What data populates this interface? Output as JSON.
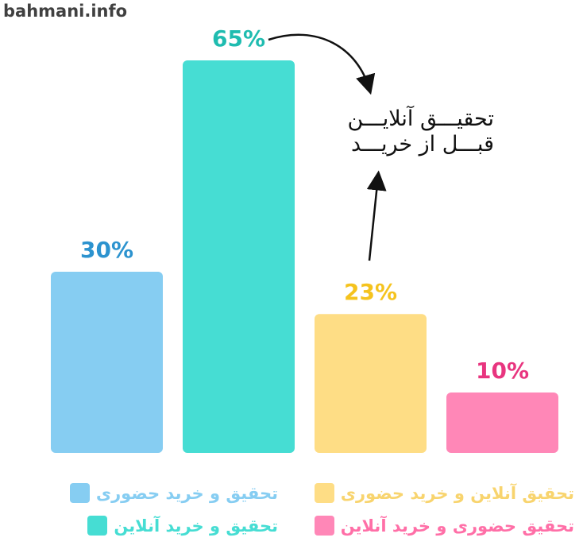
{
  "watermark": "bahmani.info",
  "chart_data": {
    "type": "bar",
    "categories": [
      "تحقیق و خرید حضوری",
      "تحقیق و خرید آنلاین",
      "تحقیق آنلاین و خرید حضوری",
      "تحقیق حضوری و خرید آنلاین"
    ],
    "values": [
      30,
      65,
      23,
      10
    ],
    "value_labels": [
      "30%",
      "65%",
      "23%",
      "10%"
    ],
    "colors": [
      "#86cdf2",
      "#46ddd3",
      "#fedd85",
      "#ff87b7"
    ],
    "label_colors": [
      "#2c93cf",
      "#1fbcb0",
      "#f5c31e",
      "#e8357f"
    ],
    "ylim": [
      0,
      65
    ],
    "grid": false,
    "legend_position": "bottom",
    "annotation": {
      "lines": [
        "تحقیـــق آنلایـــن",
        "قبـــل از خریـــد"
      ]
    }
  },
  "legend": [
    {
      "label": "تحقیق و خرید حضوری",
      "color": "#86cdf2",
      "text_color": "#86cdf2"
    },
    {
      "label": "تحقیق آنلاین و خرید حضوری",
      "color": "#fedd85",
      "text_color": "#f8d46e"
    },
    {
      "label": "تحقیق و خرید آنلاین",
      "color": "#46ddd3",
      "text_color": "#46ddd3"
    },
    {
      "label": "تحقیق حضوری و خرید آنلاین",
      "color": "#ff87b7",
      "text_color": "#ff6fa7"
    }
  ]
}
